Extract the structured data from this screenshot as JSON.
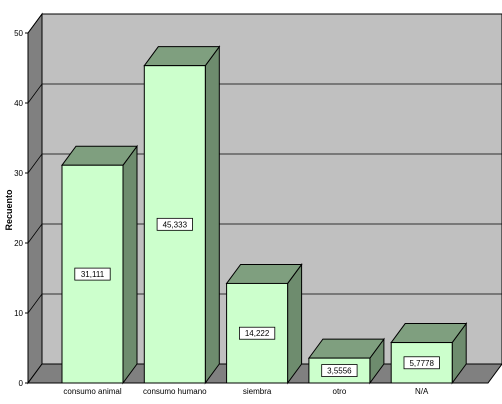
{
  "chart_data": {
    "type": "bar",
    "categories": [
      "consumo animal",
      "consumo humano",
      "siembra",
      "otro",
      "N/A"
    ],
    "values": [
      31.111,
      45.333,
      14.222,
      3.5556,
      5.7778
    ],
    "value_labels": [
      "31,111",
      "45,333",
      "14,222",
      "3,5556",
      "5,7778"
    ],
    "ylabel": "Recuento",
    "ylim": [
      0,
      50
    ],
    "yticks": [
      "0",
      "10",
      "20",
      "30",
      "40",
      "50"
    ],
    "grid": true,
    "three_d": true,
    "colors": {
      "wall": "#c0c0c0",
      "side_wall": "#808080",
      "floor": "#808080",
      "grid": "#000000",
      "bar_front": "#ccffcc",
      "bar_side": "#6e8c6e",
      "bar_top": "#7f9f7f",
      "outline": "#000000",
      "label_box": "#ffffff"
    }
  }
}
